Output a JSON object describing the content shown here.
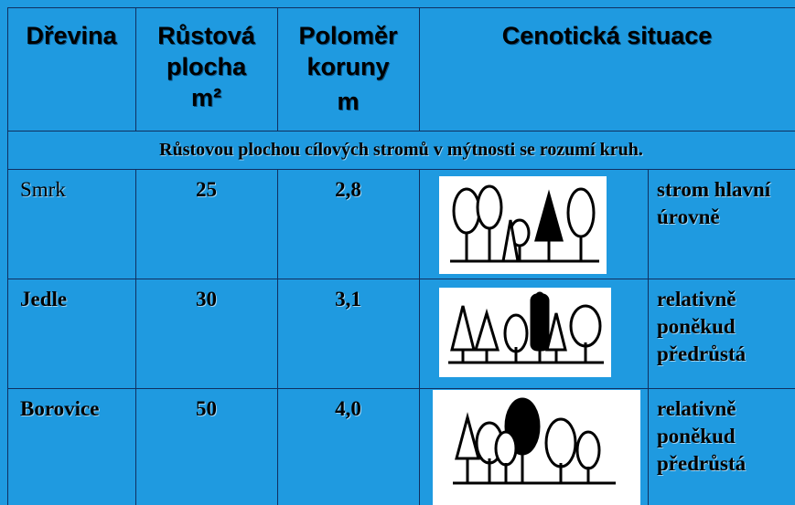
{
  "header": {
    "columns": [
      {
        "lines": [
          "Dřevina"
        ]
      },
      {
        "lines": [
          "Růstová",
          "plocha",
          "m²"
        ]
      },
      {
        "lines": [
          "Poloměr",
          "koruny",
          "m"
        ]
      },
      {
        "lines": [
          "Cenotická situace"
        ]
      }
    ]
  },
  "note": "Růstovou  plochou cílových stromů v mýtnosti se rozumí kruh.",
  "rows": [
    {
      "species": "Smrk",
      "area": "25",
      "radius": "2,8",
      "situation": [
        "strom hlavní",
        "úrovně"
      ]
    },
    {
      "species": "Jedle",
      "area": "30",
      "radius": "3,1",
      "situation": [
        "relativně",
        "poněkud",
        "předrůstá"
      ]
    },
    {
      "species": "Borovice",
      "area": "50",
      "radius": "4,0",
      "situation": [
        "relativně",
        "poněkud",
        "předrůstá"
      ]
    }
  ]
}
